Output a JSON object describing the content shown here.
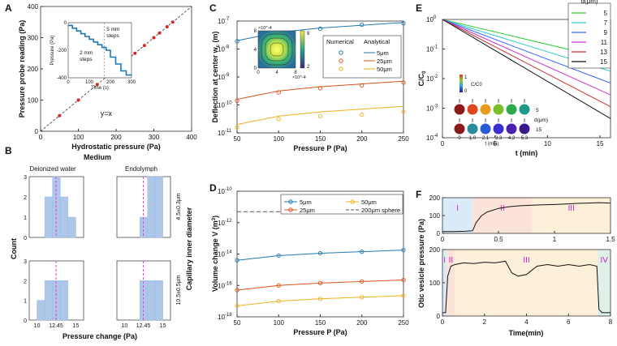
{
  "figure": "multi-panel",
  "chart_data": [
    {
      "panel": "A",
      "type": "scatter",
      "xlabel": "Hydrostatic pressure (Pa)",
      "ylabel": "Pressure probe reading (Pa)",
      "xlim": [
        0,
        400
      ],
      "ylim": [
        0,
        400
      ],
      "xticks": [
        0,
        100,
        200,
        300,
        400
      ],
      "yticks": [
        0,
        100,
        200,
        300,
        400
      ],
      "annotation": "y=x",
      "line_color": "#333333",
      "point_color": "#d62728",
      "x": [
        50,
        100,
        150,
        200,
        250,
        275,
        300,
        315,
        335,
        350
      ],
      "y": [
        50,
        100,
        150,
        195,
        250,
        275,
        300,
        315,
        335,
        350
      ],
      "inset": {
        "type": "line",
        "xlabel": "Time (s)",
        "ylabel": "Pressure (Pa)",
        "xlim": [
          0,
          300
        ],
        "ylim": [
          -400,
          0
        ],
        "xticks": [
          0,
          100,
          200,
          300
        ],
        "yticks": [
          -400,
          -200,
          0
        ],
        "annotations": [
          "2 mm steps",
          "5 mm steps"
        ],
        "divider_x": 170,
        "color": "#1f77b4",
        "x": [
          0,
          20,
          20,
          40,
          40,
          60,
          60,
          80,
          80,
          100,
          100,
          120,
          120,
          140,
          140,
          160,
          160,
          180,
          180,
          200,
          200,
          225,
          225,
          250,
          250,
          275,
          275,
          300
        ],
        "y": [
          -20,
          -20,
          -40,
          -40,
          -60,
          -60,
          -80,
          -80,
          -100,
          -100,
          -120,
          -120,
          -140,
          -140,
          -160,
          -160,
          -180,
          -180,
          -200,
          -200,
          -250,
          -250,
          -300,
          -300,
          -350,
          -350,
          -380,
          -380
        ]
      }
    },
    {
      "panel": "B",
      "type": "bar",
      "title": "Medium",
      "xlabel": "Pressure change (Pa)",
      "ylabel": "Count",
      "row_label": "Capillary inner diameter",
      "columns": [
        "Deionized water",
        "Endolymph"
      ],
      "rows": [
        "4.5±0.3μm",
        "10.5±0.5μm"
      ],
      "ylim": [
        0,
        3
      ],
      "yticks": [
        0,
        1,
        2,
        3
      ],
      "xticks": [
        "10",
        "12.45",
        "15"
      ],
      "mean_line": 12.45,
      "bar_color": "#aec7e8",
      "bins": [
        10,
        11,
        12,
        13,
        14,
        15
      ],
      "subplots": [
        {
          "row": 0,
          "col": 0,
          "counts": [
            0,
            2,
            3,
            2,
            1
          ]
        },
        {
          "row": 0,
          "col": 1,
          "counts": [
            0,
            0,
            1,
            3,
            3
          ]
        },
        {
          "row": 1,
          "col": 0,
          "counts": [
            1,
            2,
            2,
            2,
            0
          ]
        },
        {
          "row": 1,
          "col": 1,
          "counts": [
            0,
            0,
            2,
            2,
            2
          ]
        }
      ]
    },
    {
      "panel": "C",
      "type": "line",
      "xlabel": "Pressure P (Pa)",
      "ylabel": "Deflection at center w_c (m)",
      "xlim": [
        50,
        250
      ],
      "ylim_log": [
        -11,
        -7
      ],
      "xticks": [
        50,
        100,
        150,
        200,
        250
      ],
      "yticks": [
        "10^-11",
        "10^-10",
        "10^-9",
        "10^-8",
        "10^-7"
      ],
      "legend_title_numerical": "Numerical",
      "legend_title_analytical": "Analytical",
      "legend_position": "right",
      "x": [
        50,
        100,
        150,
        200,
        250
      ],
      "series": [
        {
          "name": "5μm",
          "color": "#1f77b4",
          "analytical_log": [
            -7.7,
            -7.4,
            -7.25,
            -7.15,
            -7.05
          ],
          "numerical_log": [
            -7.72,
            -7.42,
            -7.27,
            -7.13,
            -7.08
          ]
        },
        {
          "name": "25μm",
          "color": "#d95319",
          "analytical_log": [
            -9.8,
            -9.5,
            -9.35,
            -9.25,
            -9.15
          ],
          "numerical_log": [
            -9.85,
            -9.55,
            -9.4,
            -9.3,
            -9.2
          ]
        },
        {
          "name": "50μm",
          "color": "#edb120",
          "analytical_log": [
            -10.7,
            -10.4,
            -10.25,
            -10.15,
            -10.05
          ],
          "numerical_log": [
            -10.8,
            -10.5,
            -10.4,
            -10.35,
            -10.25
          ]
        }
      ],
      "inset": {
        "type": "heatmap",
        "colorbar_max": "8",
        "colorbar_min": "2",
        "x_exponent": "×10^-4",
        "y_exponent": "×10^-4",
        "xticks": [
          "0",
          "4",
          "8"
        ],
        "yticks": [
          "0",
          "4",
          "8"
        ]
      }
    },
    {
      "panel": "D",
      "type": "line",
      "xlabel": "Pressure P (Pa)",
      "ylabel": "Volume change V (m^3)",
      "xlim": [
        50,
        250
      ],
      "ylim_log": [
        -18,
        -10
      ],
      "xticks": [
        50,
        100,
        150,
        200,
        250
      ],
      "yticks": [
        "10^-18",
        "10^-16",
        "10^-14",
        "10^-12",
        "10^-10"
      ],
      "legend_position": "top",
      "x": [
        50,
        100,
        150,
        200,
        250
      ],
      "reference": {
        "name": "200μm sphere",
        "value_log": -11.3,
        "color": "#555555"
      },
      "series": [
        {
          "name": "5μm",
          "color": "#1f77b4",
          "analytical_log": [
            -14.4,
            -14.1,
            -13.95,
            -13.85,
            -13.75
          ],
          "numerical_log": [
            -14.4,
            -14.1,
            -13.95,
            -13.85,
            -13.75
          ]
        },
        {
          "name": "25μm",
          "color": "#d95319",
          "analytical_log": [
            -16.3,
            -16.0,
            -15.85,
            -15.75,
            -15.65
          ],
          "numerical_log": [
            -16.3,
            -16.0,
            -15.85,
            -15.75,
            -15.65
          ]
        },
        {
          "name": "50μm",
          "color": "#edb120",
          "analytical_log": [
            -17.3,
            -17.0,
            -16.85,
            -16.75,
            -16.65
          ],
          "numerical_log": [
            -17.3,
            -17.0,
            -16.85,
            -16.75,
            -16.65
          ]
        }
      ]
    },
    {
      "panel": "E",
      "type": "line",
      "xlabel": "t (min)",
      "ylabel": "C/C0",
      "xlim": [
        0,
        16
      ],
      "ylim_log": [
        -4,
        0
      ],
      "xticks": [
        0,
        5,
        10,
        15
      ],
      "yticks": [
        "10^-4",
        "10^-3",
        "10^-2",
        "10^-1",
        "10^0"
      ],
      "legend_title": "d(μm)",
      "legend_position": "top-right",
      "series": [
        {
          "name": "5",
          "color": "#33cc33",
          "end_log": -1.35
        },
        {
          "name": "7",
          "color": "#33cccc",
          "end_log": -1.75
        },
        {
          "name": "9",
          "color": "#3366ff",
          "end_log": -2.15
        },
        {
          "name": "11",
          "color": "#cc33cc",
          "end_log": -2.55
        },
        {
          "name": "13",
          "color": "#cc3333",
          "end_log": -2.95
        },
        {
          "name": "15",
          "color": "#111111",
          "end_log": -3.35
        }
      ],
      "inset": {
        "colorbar_label": "C/C0",
        "colorbar_max": "1",
        "colorbar_min": "0",
        "side_label": "d(μm)",
        "top_row_d": "5",
        "bottom_row_d": "15",
        "times": [
          "0",
          "1.0",
          "2.1",
          "3.3",
          "4.2",
          "5.3"
        ],
        "time_label": "t (min)",
        "top_colors": [
          "#8b1a1a",
          "#e0451e",
          "#e89a1b",
          "#7bbf2a",
          "#2eaa4a",
          "#1f9a8a"
        ],
        "bottom_colors": [
          "#8b1a1a",
          "#2a8c9e",
          "#2a5bd7",
          "#3a2fd0",
          "#4a22b0",
          "#3b1a8a"
        ]
      }
    },
    {
      "panel": "F",
      "type": "line",
      "ylabel": "Otic vesicle pressure (Pa)",
      "xlabel": "Time(min)",
      "color": "#111111",
      "top": {
        "xlim": [
          0,
          1.5
        ],
        "ylim": [
          0,
          200
        ],
        "xticks": [
          0,
          0.5,
          1,
          1.5
        ],
        "yticks": [
          0,
          100,
          200
        ],
        "phases": [
          {
            "label": "I",
            "from": 0,
            "to": 0.27,
            "color": "#dbeaf7"
          },
          {
            "label": "II",
            "from": 0.27,
            "to": 0.8,
            "color": "#fbe3d9"
          },
          {
            "label": "III",
            "from": 0.8,
            "to": 1.5,
            "color": "#fdf0d9"
          }
        ],
        "x": [
          0,
          0.1,
          0.2,
          0.27,
          0.3,
          0.35,
          0.4,
          0.5,
          0.6,
          0.7,
          0.8,
          0.9,
          1.0,
          1.1,
          1.2,
          1.3,
          1.4,
          1.5
        ],
        "y": [
          10,
          10,
          12,
          15,
          60,
          100,
          120,
          140,
          150,
          155,
          158,
          160,
          162,
          165,
          168,
          170,
          172,
          170
        ]
      },
      "bottom": {
        "xlim": [
          0,
          8
        ],
        "ylim": [
          0,
          200
        ],
        "xticks": [
          0,
          2,
          4,
          6,
          8
        ],
        "yticks": [
          0,
          100,
          200
        ],
        "phases": [
          {
            "label": "I",
            "from": 0,
            "to": 0.2,
            "color": "#dbeaf7"
          },
          {
            "label": "II",
            "from": 0.2,
            "to": 0.6,
            "color": "#fbe3d9"
          },
          {
            "label": "III",
            "from": 0.6,
            "to": 7.4,
            "color": "#fdf0d9"
          },
          {
            "label": "IV",
            "from": 7.4,
            "to": 8,
            "color": "#dff0e8"
          }
        ],
        "x": [
          0,
          0.15,
          0.25,
          0.4,
          0.6,
          1.0,
          1.5,
          2.0,
          2.5,
          3.0,
          3.3,
          3.6,
          4.0,
          4.5,
          5.0,
          5.5,
          6.0,
          6.5,
          7.0,
          7.35,
          7.45,
          7.6,
          8.0
        ],
        "y": [
          10,
          10,
          120,
          150,
          155,
          160,
          158,
          162,
          160,
          165,
          130,
          120,
          125,
          150,
          155,
          150,
          155,
          150,
          155,
          150,
          20,
          10,
          10
        ]
      }
    }
  ]
}
